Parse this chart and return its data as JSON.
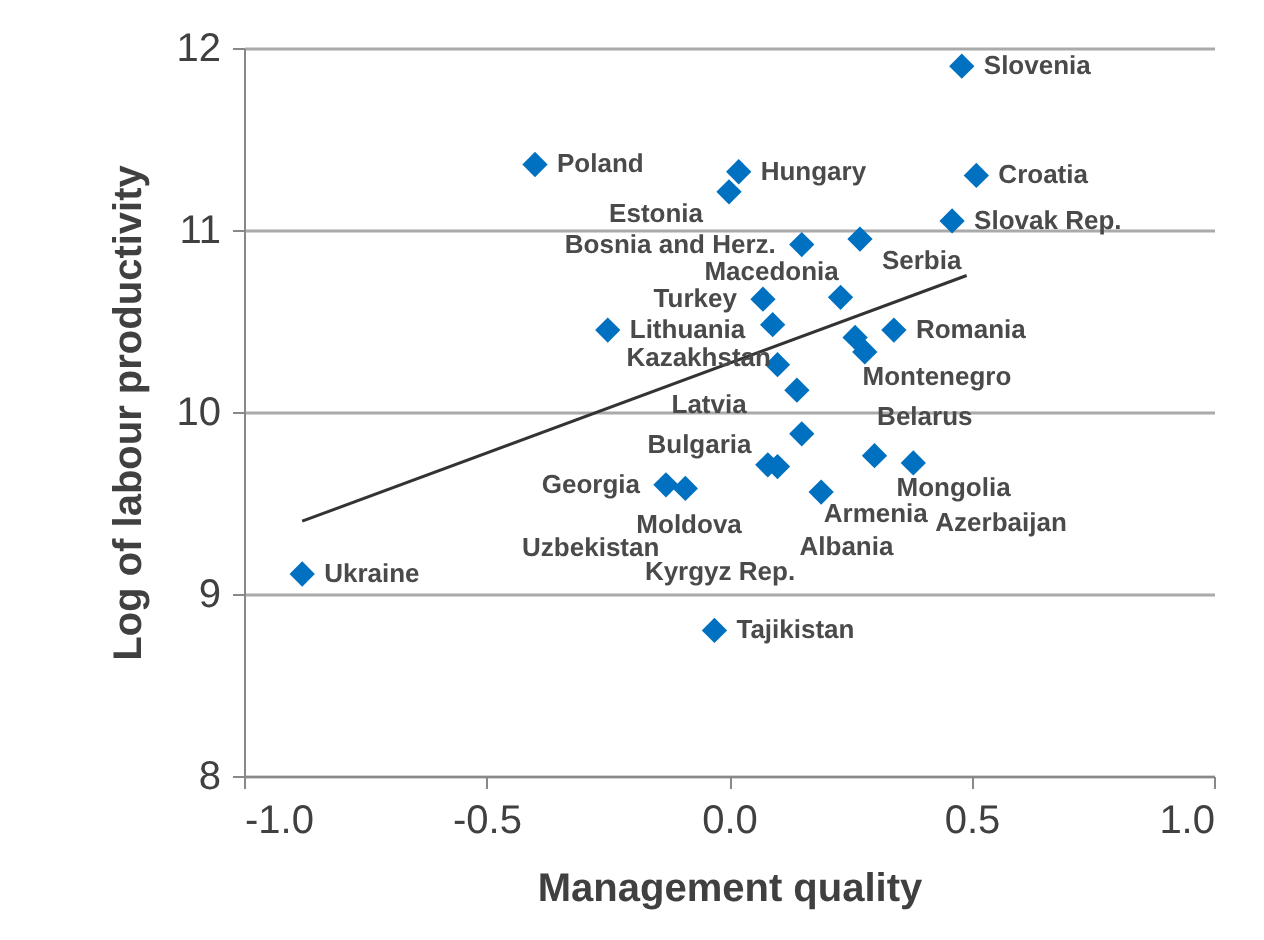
{
  "chart_data": {
    "type": "scatter",
    "xlabel": "Management quality",
    "ylabel": "Log of labour productivity",
    "xlim": [
      -1.0,
      1.0
    ],
    "xticks": [
      {
        "value": -1,
        "label": "-1.0"
      },
      {
        "value": -0.5,
        "label": "-0.5"
      },
      {
        "value": 0,
        "label": "0.0"
      },
      {
        "value": 0.5,
        "label": "0.5"
      },
      {
        "value": 1,
        "label": "1.0"
      }
    ],
    "ylim": [
      8,
      12
    ],
    "yticks": [
      8,
      9,
      10,
      11,
      12
    ],
    "grid": "y",
    "series": [
      {
        "color": "#0070c0",
        "marker": "diamond",
        "x": [
          0.48,
          0.51,
          -0.4,
          0.02,
          0.0,
          0.46,
          0.15,
          0.27,
          -0.25,
          0.07,
          0.09,
          0.23,
          0.26,
          0.34,
          0.28,
          0.1,
          0.14,
          0.15,
          0.08,
          0.1,
          0.3,
          0.38,
          0.19,
          -0.13,
          -0.09,
          -0.88,
          -0.03
        ],
        "values": [
          11.9,
          11.3,
          11.36,
          11.32,
          11.21,
          11.05,
          10.92,
          10.95,
          10.45,
          10.62,
          10.48,
          10.63,
          10.41,
          10.45,
          10.33,
          10.26,
          10.12,
          9.88,
          9.71,
          9.7,
          9.76,
          9.72,
          9.56,
          9.6,
          9.58,
          9.11,
          8.8
        ]
      },
      {
        "type": "line",
        "color": "#333333",
        "marker": "none",
        "line_style": "solid",
        "x": [
          -0.88,
          0.49
        ],
        "values": [
          9.4,
          10.75
        ]
      }
    ],
    "annotations": [
      {
        "text": "Slovenia",
        "x": 0.48,
        "y": 11.9
      },
      {
        "text": "Croatia",
        "x": 0.51,
        "y": 11.3
      },
      {
        "text": "Poland",
        "x": -0.4,
        "y": 11.36
      },
      {
        "text": "Hungary",
        "x": 0.02,
        "y": 11.32
      },
      {
        "text": "Estonia",
        "x": 0.0,
        "y": 11.21
      },
      {
        "text": "Slovak Rep.",
        "x": 0.46,
        "y": 11.05
      },
      {
        "text": "Bosnia and Herz.",
        "x": 0.15,
        "y": 10.92
      },
      {
        "text": "Serbia",
        "x": 0.27,
        "y": 10.95
      },
      {
        "text": "Lithuania",
        "x": -0.25,
        "y": 10.45
      },
      {
        "text": "Turkey",
        "x": 0.07,
        "y": 10.62
      },
      {
        "text": "Latvia",
        "x": 0.09,
        "y": 10.48
      },
      {
        "text": "Montenegro",
        "x": 0.23,
        "y": 10.63
      },
      {
        "text": "Belarus",
        "x": 0.26,
        "y": 10.41
      },
      {
        "text": "Romania",
        "x": 0.34,
        "y": 10.45
      },
      {
        "text": "Macedonia",
        "x": 0.28,
        "y": 10.33
      },
      {
        "text": "Bulgaria",
        "x": 0.1,
        "y": 10.26
      },
      {
        "text": "Kazakhstan",
        "x": 0.14,
        "y": 10.12
      },
      {
        "text": "Armenia",
        "x": 0.15,
        "y": 9.88
      },
      {
        "text": "Moldova",
        "x": 0.08,
        "y": 9.71
      },
      {
        "text": "Albania",
        "x": 0.1,
        "y": 9.7
      },
      {
        "text": "Mongolia",
        "x": 0.3,
        "y": 9.76
      },
      {
        "text": "Azerbaijan",
        "x": 0.38,
        "y": 9.72
      },
      {
        "text": "Kyrgyz Rep.",
        "x": 0.19,
        "y": 9.56
      },
      {
        "text": "Georgia",
        "x": -0.13,
        "y": 9.6
      },
      {
        "text": "Uzbekistan",
        "x": -0.09,
        "y": 9.58
      },
      {
        "text": "Ukraine",
        "x": -0.88,
        "y": 9.11
      },
      {
        "text": "Tajikistan",
        "x": -0.03,
        "y": 8.8
      }
    ]
  }
}
